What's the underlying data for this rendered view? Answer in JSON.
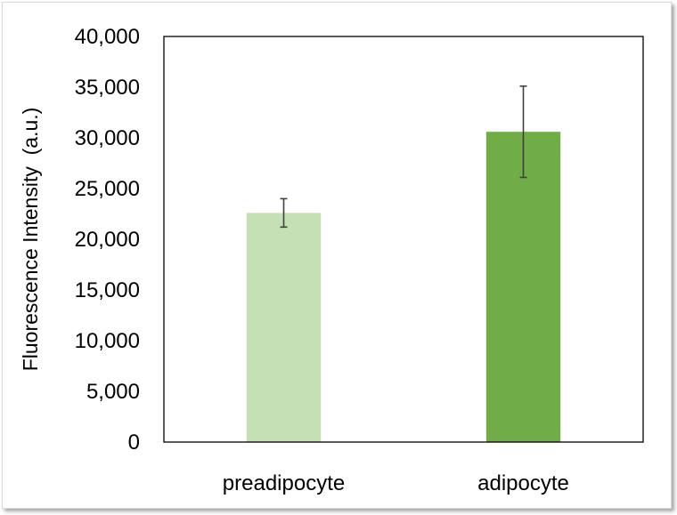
{
  "chart_data": {
    "type": "bar",
    "title": "",
    "xlabel": "",
    "ylabel": "Fluorescence Intensity  (a.u.)",
    "ylim": [
      0,
      40000
    ],
    "yticks": [
      0,
      5000,
      10000,
      15000,
      20000,
      25000,
      30000,
      35000,
      40000
    ],
    "ytick_labels": [
      "0",
      "5,000",
      "10,000",
      "15,000",
      "20,000",
      "25,000",
      "30,000",
      "35,000",
      "40,000"
    ],
    "categories": [
      "preadipocyte",
      "adipocyte"
    ],
    "values": [
      22600,
      30600
    ],
    "error": [
      1400,
      4500
    ],
    "colors": [
      "#c5e0b4",
      "#70ad47"
    ],
    "grid": false,
    "legend": "none"
  }
}
